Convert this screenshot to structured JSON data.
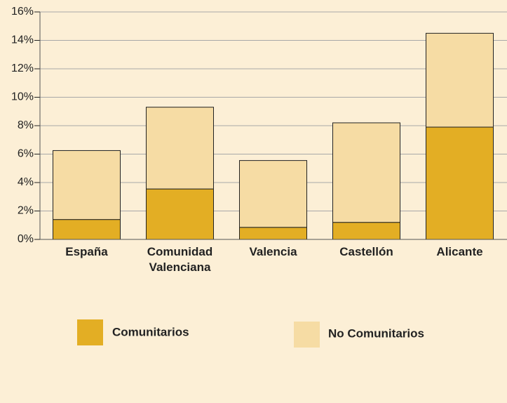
{
  "chart_data": {
    "type": "stacked_bar",
    "categories": [
      "España",
      "Comunidad Valenciana",
      "Valencia",
      "Castellón",
      "Alicante"
    ],
    "series": [
      {
        "name": "Comunitarios",
        "color": "#e3ae24",
        "values": [
          1.4,
          3.55,
          0.85,
          1.2,
          7.9
        ]
      },
      {
        "name": "No Comunitarios",
        "color": "#f6dca4",
        "values": [
          4.85,
          5.75,
          4.7,
          7.0,
          6.6
        ]
      }
    ],
    "ylim": [
      0,
      16
    ],
    "yticks": [
      {
        "value": 0,
        "label": "0%"
      },
      {
        "value": 2,
        "label": "2%"
      },
      {
        "value": 4,
        "label": "4%"
      },
      {
        "value": 6,
        "label": "6%"
      },
      {
        "value": 8,
        "label": "8%"
      },
      {
        "value": 10,
        "label": "10%"
      },
      {
        "value": 12,
        "label": "12%"
      },
      {
        "value": 14,
        "label": "14%"
      },
      {
        "value": 16,
        "label": "16%"
      }
    ],
    "grid": true
  }
}
